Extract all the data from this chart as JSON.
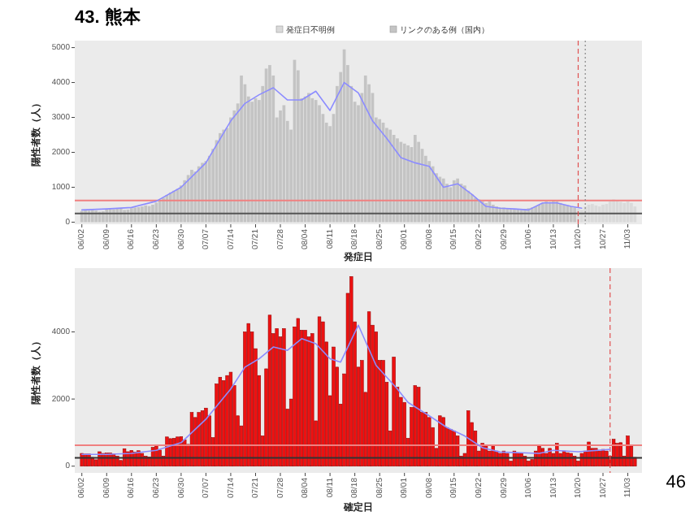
{
  "chart_data": [
    {
      "type": "bar",
      "title": "43. 熊本",
      "legend": "top",
      "xlabel": "発症日",
      "ylabel": "陽性者数（人）",
      "x": [
        "--06-02",
        "--06-03",
        "--06-04",
        "--06-05",
        "--06-06",
        "--06-07",
        "--06-08",
        "--06-09",
        "--06-10",
        "--06-11",
        "--06-12",
        "--06-13",
        "--06-14",
        "--06-15",
        "--06-16",
        "--06-17",
        "--06-18",
        "--06-19",
        "--06-20",
        "--06-21",
        "--06-22",
        "--06-23",
        "--06-24",
        "--06-25",
        "--06-26",
        "--06-27",
        "--06-28",
        "--06-29",
        "--06-30",
        "--07-01",
        "--07-02",
        "--07-03",
        "--07-04",
        "--07-05",
        "--07-06",
        "--07-07",
        "--07-08",
        "--07-09",
        "--07-10",
        "--07-11",
        "--07-12",
        "--07-13",
        "--07-14",
        "--07-15",
        "--07-16",
        "--07-17",
        "--07-18",
        "--07-19",
        "--07-20",
        "--07-21",
        "--07-22",
        "--07-23",
        "--07-24",
        "--07-25",
        "--07-26",
        "--07-27",
        "--07-28",
        "--07-29",
        "--07-30",
        "--07-31",
        "--08-01",
        "--08-02",
        "--08-03",
        "--08-04",
        "--08-05",
        "--08-06",
        "--08-07",
        "--08-08",
        "--08-09",
        "--08-10",
        "--08-11",
        "--08-12",
        "--08-13",
        "--08-14",
        "--08-15",
        "--08-16",
        "--08-17",
        "--08-18",
        "--08-19",
        "--08-20",
        "--08-21",
        "--08-22",
        "--08-23",
        "--08-24",
        "--08-25",
        "--08-26",
        "--08-27",
        "--08-28",
        "--08-29",
        "--08-30",
        "--08-31",
        "--09-01",
        "--09-02",
        "--09-03",
        "--09-04",
        "--09-05",
        "--09-06",
        "--09-07",
        "--09-08",
        "--09-09",
        "--09-10",
        "--09-11",
        "--09-12",
        "--09-13",
        "--09-14",
        "--09-15",
        "--09-16",
        "--09-17",
        "--09-18",
        "--09-19",
        "--09-20",
        "--09-21",
        "--09-22",
        "--09-23",
        "--09-24",
        "--09-25",
        "--09-26",
        "--09-27",
        "--09-28",
        "--09-29",
        "--09-30",
        "--10-01",
        "--10-02",
        "--10-03",
        "--10-04",
        "--10-05",
        "--10-06",
        "--10-07",
        "--10-08",
        "--10-09",
        "--10-10",
        "--10-11",
        "--10-12",
        "--10-13",
        "--10-14",
        "--10-15",
        "--10-16",
        "--10-17",
        "--10-18",
        "--10-19",
        "--10-20",
        "--10-21",
        "--10-22",
        "--10-23",
        "--10-24",
        "--10-25",
        "--10-26",
        "--10-27",
        "--10-28",
        "--10-29",
        "--10-30",
        "--10-31",
        "--11-01",
        "--11-02",
        "--11-03",
        "--11-04",
        "--11-05"
      ],
      "xlim": [
        "--05-31",
        "--11-07"
      ],
      "xticks": [
        {
          "value": "--06-02",
          "label": "06/02"
        },
        {
          "value": "--06-09",
          "label": "06/09"
        },
        {
          "value": "--06-16",
          "label": "06/16"
        },
        {
          "value": "--06-23",
          "label": "06/23"
        },
        {
          "value": "--06-30",
          "label": "06/30"
        },
        {
          "value": "--07-07",
          "label": "07/07"
        },
        {
          "value": "--07-14",
          "label": "07/14"
        },
        {
          "value": "--07-21",
          "label": "07/21"
        },
        {
          "value": "--07-28",
          "label": "07/28"
        },
        {
          "value": "--08-04",
          "label": "08/04"
        },
        {
          "value": "--08-11",
          "label": "08/11"
        },
        {
          "value": "--08-18",
          "label": "08/18"
        },
        {
          "value": "--08-25",
          "label": "08/25"
        },
        {
          "value": "--09-01",
          "label": "09/01"
        },
        {
          "value": "--09-08",
          "label": "09/08"
        },
        {
          "value": "--09-15",
          "label": "09/15"
        },
        {
          "value": "--09-22",
          "label": "09/22"
        },
        {
          "value": "--09-29",
          "label": "09/29"
        },
        {
          "value": "--10-06",
          "label": "10/06"
        },
        {
          "value": "--10-13",
          "label": "10/13"
        },
        {
          "value": "--10-20",
          "label": "10/20"
        },
        {
          "value": "--10-27",
          "label": "10/27"
        },
        {
          "value": "--11-03",
          "label": "11/03"
        }
      ],
      "ylim": [
        -60,
        5200
      ],
      "yticks": [
        0,
        1000,
        2000,
        3000,
        4000,
        5000
      ],
      "series": [
        {
          "name": "発症日不明例",
          "type": "bar",
          "color": "#dadada",
          "values": [
            null,
            null,
            null,
            null,
            null,
            null,
            null,
            null,
            null,
            null,
            null,
            null,
            null,
            null,
            null,
            null,
            null,
            null,
            null,
            null,
            null,
            null,
            null,
            null,
            null,
            null,
            null,
            null,
            null,
            null,
            null,
            null,
            null,
            null,
            null,
            null,
            null,
            null,
            null,
            null,
            null,
            null,
            null,
            null,
            null,
            null,
            null,
            null,
            null,
            null,
            null,
            null,
            null,
            null,
            null,
            null,
            null,
            null,
            null,
            null,
            null,
            null,
            null,
            null,
            null,
            null,
            null,
            null,
            null,
            null,
            null,
            null,
            null,
            null,
            null,
            null,
            null,
            null,
            null,
            null,
            null,
            null,
            null,
            null,
            null,
            null,
            null,
            null,
            null,
            null,
            null,
            null,
            null,
            null,
            null,
            null,
            null,
            null,
            null,
            null,
            null,
            null,
            null,
            null,
            null,
            null,
            null,
            null,
            null,
            null,
            null,
            null,
            null,
            null,
            null,
            null,
            null,
            null,
            null,
            null,
            null,
            null,
            null,
            null,
            null,
            null,
            null,
            null,
            null,
            null,
            null,
            null,
            null,
            null,
            null,
            null,
            null,
            null,
            null,
            null,
            380,
            350,
            450,
            500,
            520,
            480,
            450,
            500,
            520,
            600,
            650,
            620,
            580,
            550,
            600,
            550,
            450
          ]
        },
        {
          "name": "リンクのある例（国内）",
          "type": "bar",
          "color": "#c4c4c4",
          "values": [
            320,
            340,
            330,
            350,
            330,
            300,
            310,
            360,
            380,
            370,
            400,
            390,
            350,
            360,
            400,
            420,
            430,
            450,
            480,
            460,
            500,
            560,
            620,
            700,
            780,
            850,
            900,
            950,
            1050,
            1200,
            1350,
            1500,
            1450,
            1600,
            1700,
            1750,
            1900,
            2100,
            2350,
            2550,
            2650,
            2700,
            3000,
            3200,
            3400,
            4200,
            3950,
            3600,
            3450,
            3550,
            3500,
            3900,
            4400,
            4500,
            4200,
            3000,
            3200,
            3350,
            2900,
            2650,
            4650,
            4350,
            3550,
            3600,
            3700,
            3550,
            3500,
            3350,
            3100,
            2850,
            2750,
            3100,
            3900,
            4300,
            4950,
            4500,
            3900,
            3450,
            3350,
            3700,
            4200,
            3950,
            3700,
            3000,
            2950,
            2850,
            2700,
            2650,
            2500,
            2400,
            2300,
            2250,
            2200,
            2150,
            2500,
            2300,
            2100,
            1900,
            1750,
            1600,
            1400,
            1300,
            1250,
            1100,
            1000,
            1200,
            1250,
            1100,
            1050,
            900,
            800,
            700,
            650,
            600,
            550,
            600,
            500,
            450,
            420,
            420,
            400,
            380,
            370,
            360,
            350,
            380,
            400,
            420,
            450,
            500,
            550,
            600,
            580,
            620,
            600,
            550,
            500,
            480,
            450,
            420,
            null,
            null,
            null,
            null,
            null,
            null,
            null,
            null,
            null,
            null,
            null,
            null,
            null,
            null,
            null,
            null,
            null
          ]
        },
        {
          "type": "line",
          "color": "#8c8cff",
          "x": [
            "--06-02",
            "--06-09",
            "--06-16",
            "--06-23",
            "--06-30",
            "--07-07",
            "--07-14",
            "--07-18",
            "--07-22",
            "--07-26",
            "--07-30",
            "--08-03",
            "--08-07",
            "--08-11",
            "--08-15",
            "--08-19",
            "--08-23",
            "--08-27",
            "--08-31",
            "--09-04",
            "--09-08",
            "--09-12",
            "--09-16",
            "--09-20",
            "--09-24",
            "--09-28",
            "--10-02",
            "--10-06",
            "--10-10",
            "--10-14",
            "--10-18",
            "--10-21"
          ],
          "values": [
            350,
            380,
            420,
            600,
            1000,
            1700,
            2900,
            3400,
            3650,
            3850,
            3500,
            3500,
            3750,
            3200,
            4000,
            3700,
            2900,
            2400,
            1850,
            1700,
            1600,
            1000,
            1100,
            800,
            450,
            400,
            380,
            350,
            550,
            550,
            450,
            400
          ]
        }
      ],
      "ref_lines": [
        {
          "axis": "y",
          "value": 620,
          "color": "#f08080",
          "line_style": "solid"
        },
        {
          "axis": "y",
          "value": 250,
          "color": "#555555",
          "line_style": "solid"
        },
        {
          "axis": "x",
          "value": "--10-20",
          "color": "#e05050",
          "line_style": "dashed"
        },
        {
          "axis": "x",
          "value": "--10-22",
          "color": "#888888",
          "line_style": "dotted"
        }
      ]
    },
    {
      "type": "bar",
      "xlabel": "確定日",
      "ylabel": "陽性者数（人）",
      "x": [
        "--06-02",
        "--06-03",
        "--06-04",
        "--06-05",
        "--06-06",
        "--06-07",
        "--06-08",
        "--06-09",
        "--06-10",
        "--06-11",
        "--06-12",
        "--06-13",
        "--06-14",
        "--06-15",
        "--06-16",
        "--06-17",
        "--06-18",
        "--06-19",
        "--06-20",
        "--06-21",
        "--06-22",
        "--06-23",
        "--06-24",
        "--06-25",
        "--06-26",
        "--06-27",
        "--06-28",
        "--06-29",
        "--06-30",
        "--07-01",
        "--07-02",
        "--07-03",
        "--07-04",
        "--07-05",
        "--07-06",
        "--07-07",
        "--07-08",
        "--07-09",
        "--07-10",
        "--07-11",
        "--07-12",
        "--07-13",
        "--07-14",
        "--07-15",
        "--07-16",
        "--07-17",
        "--07-18",
        "--07-19",
        "--07-20",
        "--07-21",
        "--07-22",
        "--07-23",
        "--07-24",
        "--07-25",
        "--07-26",
        "--07-27",
        "--07-28",
        "--07-29",
        "--07-30",
        "--07-31",
        "--08-01",
        "--08-02",
        "--08-03",
        "--08-04",
        "--08-05",
        "--08-06",
        "--08-07",
        "--08-08",
        "--08-09",
        "--08-10",
        "--08-11",
        "--08-12",
        "--08-13",
        "--08-14",
        "--08-15",
        "--08-16",
        "--08-17",
        "--08-18",
        "--08-19",
        "--08-20",
        "--08-21",
        "--08-22",
        "--08-23",
        "--08-24",
        "--08-25",
        "--08-26",
        "--08-27",
        "--08-28",
        "--08-29",
        "--08-30",
        "--08-31",
        "--09-01",
        "--09-02",
        "--09-03",
        "--09-04",
        "--09-05",
        "--09-06",
        "--09-07",
        "--09-08",
        "--09-09",
        "--09-10",
        "--09-11",
        "--09-12",
        "--09-13",
        "--09-14",
        "--09-15",
        "--09-16",
        "--09-17",
        "--09-18",
        "--09-19",
        "--09-20",
        "--09-21",
        "--09-22",
        "--09-23",
        "--09-24",
        "--09-25",
        "--09-26",
        "--09-27",
        "--09-28",
        "--09-29",
        "--09-30",
        "--10-01",
        "--10-02",
        "--10-03",
        "--10-04",
        "--10-05",
        "--10-06",
        "--10-07",
        "--10-08",
        "--10-09",
        "--10-10",
        "--10-11",
        "--10-12",
        "--10-13",
        "--10-14",
        "--10-15",
        "--10-16",
        "--10-17",
        "--10-18",
        "--10-19",
        "--10-20",
        "--10-21",
        "--10-22",
        "--10-23",
        "--10-24",
        "--10-25",
        "--10-26",
        "--10-27",
        "--10-28",
        "--10-29",
        "--10-30",
        "--10-31",
        "--11-01",
        "--11-02",
        "--11-03",
        "--11-04",
        "--11-05"
      ],
      "xlim": [
        "--05-31",
        "--11-07"
      ],
      "xticks": [
        {
          "value": "--06-02",
          "label": "06/02"
        },
        {
          "value": "--06-09",
          "label": "06/09"
        },
        {
          "value": "--06-16",
          "label": "06/16"
        },
        {
          "value": "--06-23",
          "label": "06/23"
        },
        {
          "value": "--06-30",
          "label": "06/30"
        },
        {
          "value": "--07-07",
          "label": "07/07"
        },
        {
          "value": "--07-14",
          "label": "07/14"
        },
        {
          "value": "--07-21",
          "label": "07/21"
        },
        {
          "value": "--07-28",
          "label": "07/28"
        },
        {
          "value": "--08-04",
          "label": "08/04"
        },
        {
          "value": "--08-11",
          "label": "08/11"
        },
        {
          "value": "--08-18",
          "label": "08/18"
        },
        {
          "value": "--08-25",
          "label": "08/25"
        },
        {
          "value": "--09-01",
          "label": "09/01"
        },
        {
          "value": "--09-08",
          "label": "09/08"
        },
        {
          "value": "--09-15",
          "label": "09/15"
        },
        {
          "value": "--09-22",
          "label": "09/22"
        },
        {
          "value": "--09-29",
          "label": "09/29"
        },
        {
          "value": "--10-06",
          "label": "10/06"
        },
        {
          "value": "--10-13",
          "label": "10/13"
        },
        {
          "value": "--10-20",
          "label": "10/20"
        },
        {
          "value": "--10-27",
          "label": "10/27"
        },
        {
          "value": "--11-03",
          "label": "11/03"
        }
      ],
      "ylim": [
        -200,
        5900
      ],
      "yticks": [
        0,
        2000,
        4000
      ],
      "series": [
        {
          "type": "bar",
          "color": "#ee1111",
          "values": [
            380,
            360,
            360,
            260,
            190,
            430,
            380,
            390,
            390,
            360,
            300,
            170,
            520,
            430,
            470,
            420,
            460,
            380,
            300,
            270,
            560,
            600,
            480,
            300,
            870,
            820,
            830,
            870,
            880,
            780,
            650,
            1600,
            1450,
            1600,
            1650,
            1730,
            1500,
            850,
            2450,
            2650,
            2550,
            2700,
            2800,
            2400,
            1500,
            1200,
            4000,
            4250,
            4000,
            3500,
            2700,
            900,
            2900,
            4500,
            3950,
            4100,
            3850,
            4100,
            1700,
            2000,
            4150,
            4400,
            4050,
            4050,
            3850,
            3950,
            1350,
            4450,
            4300,
            3700,
            2100,
            3550,
            2950,
            1850,
            2750,
            5150,
            5650,
            4300,
            2950,
            3150,
            2200,
            4600,
            4200,
            4000,
            3150,
            3150,
            2500,
            1050,
            3250,
            2350,
            2050,
            1900,
            830,
            1750,
            2400,
            2350,
            1600,
            1600,
            1450,
            1150,
            530,
            1500,
            1450,
            1150,
            1100,
            1050,
            900,
            300,
            380,
            1650,
            1300,
            1050,
            450,
            680,
            600,
            450,
            600,
            450,
            380,
            450,
            380,
            150,
            450,
            400,
            380,
            300,
            150,
            200,
            450,
            600,
            530,
            380,
            530,
            380,
            680,
            380,
            450,
            400,
            380,
            300,
            150,
            380,
            450,
            720,
            530,
            530,
            450,
            500,
            450,
            300,
            800,
            680,
            700,
            300,
            900,
            600,
            260
          ]
        },
        {
          "type": "line",
          "color": "#8c8cff",
          "x": [
            "--06-02",
            "--06-09",
            "--06-16",
            "--06-23",
            "--06-30",
            "--07-07",
            "--07-14",
            "--07-18",
            "--07-22",
            "--07-26",
            "--07-30",
            "--08-03",
            "--08-07",
            "--08-11",
            "--08-14",
            "--08-19",
            "--08-24",
            "--08-30",
            "--09-02",
            "--09-08",
            "--09-13",
            "--09-18",
            "--09-23",
            "--09-28",
            "--10-09",
            "--10-13",
            "--10-20",
            "--10-29"
          ],
          "values": [
            350,
            350,
            380,
            470,
            700,
            1400,
            2300,
            2950,
            3200,
            3550,
            3450,
            3800,
            3650,
            3200,
            3100,
            4200,
            3000,
            2300,
            1900,
            1500,
            1150,
            900,
            550,
            420,
            380,
            470,
            430,
            500
          ]
        }
      ],
      "ref_lines": [
        {
          "axis": "y",
          "value": 620,
          "color": "#f08080",
          "line_style": "solid"
        },
        {
          "axis": "y",
          "value": 250,
          "color": "#333333",
          "line_style": "solid"
        },
        {
          "axis": "x",
          "value": "--10-29",
          "color": "#e05050",
          "line_style": "dashed"
        }
      ],
      "annotations": [
        "46"
      ]
    }
  ]
}
